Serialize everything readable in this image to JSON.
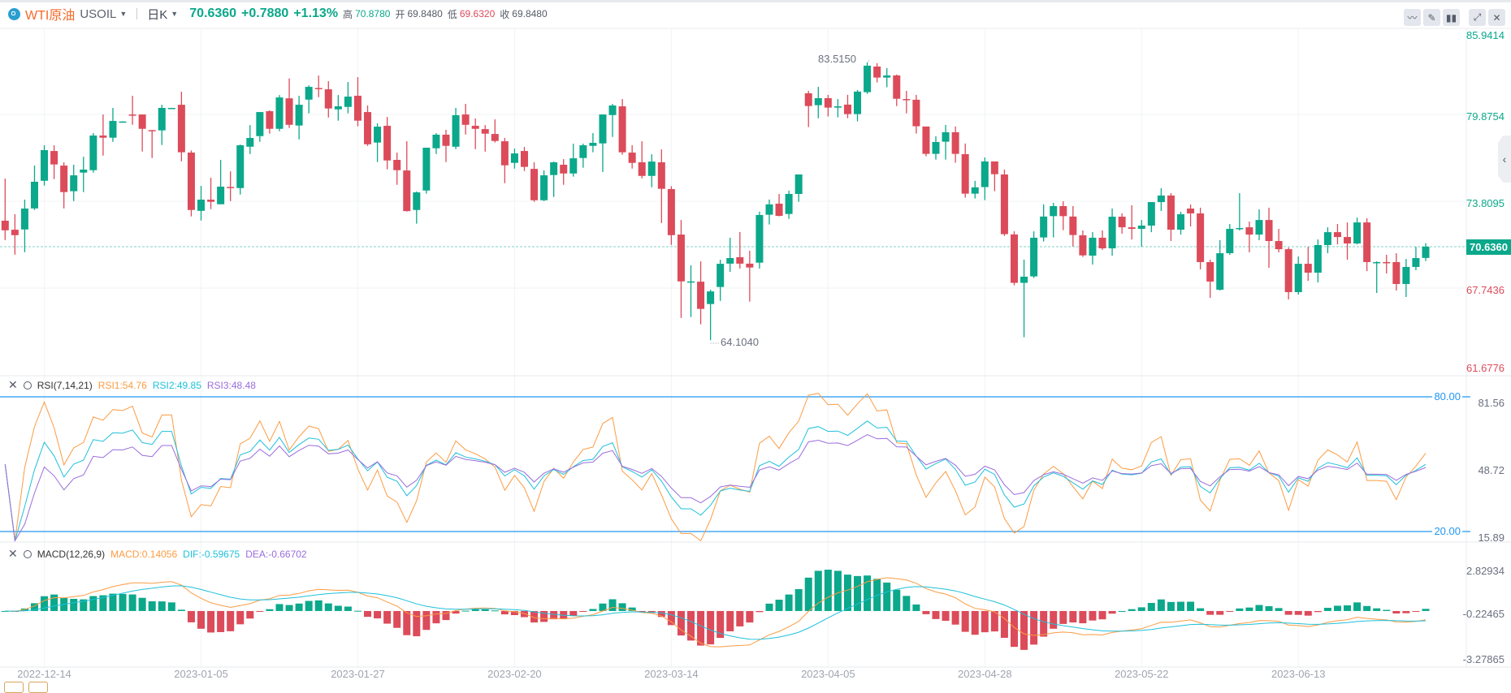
{
  "header": {
    "name": "WTI原油",
    "symbol": "USOIL",
    "period": "日K",
    "last": "70.6360",
    "change": "+0.7880",
    "change_pct": "+1.13%",
    "high_label": "高",
    "high": "70.8780",
    "open_label": "开",
    "open": "69.8480",
    "low_label": "低",
    "low": "69.6320",
    "close_label": "收",
    "close": "69.8480"
  },
  "toolbar": {
    "icons": [
      "indicator-icon",
      "draw-pencil-icon",
      "candlestick-type-icon",
      "expand-icon",
      "close-icon"
    ]
  },
  "colors": {
    "up": "#0ba88b",
    "down": "#dc4b5a",
    "rsi1": "#fb9c44",
    "rsi2": "#1fc0da",
    "rsi3": "#9a6ddc",
    "macd": "#fb9c44",
    "dif": "#1fc0da",
    "dea": "#9a6ddc",
    "band": "#2196f3"
  },
  "chart_data": [
    {
      "type": "candlestick",
      "price_axis": {
        "ticks": [
          "85.9414",
          "79.8754",
          "73.8095",
          "67.7436",
          "61.6776"
        ],
        "range": [
          61.6776,
          85.9414
        ]
      },
      "current_price": "70.6360",
      "annotations": {
        "max": "83.5150",
        "min": "64.1040"
      },
      "x_ticks": [
        {
          "label": "2022-12-14",
          "index": 4
        },
        {
          "label": "2023-01-05",
          "index": 20
        },
        {
          "label": "2023-01-27",
          "index": 36
        },
        {
          "label": "2023-02-20",
          "index": 52
        },
        {
          "label": "2023-03-14",
          "index": 68
        },
        {
          "label": "2023-04-05",
          "index": 84
        },
        {
          "label": "2023-04-28",
          "index": 100
        },
        {
          "label": "2023-05-22",
          "index": 116
        },
        {
          "label": "2023-06-13",
          "index": 132
        }
      ],
      "ohlc": [
        [
          72.45,
          75.39,
          71.1,
          71.78
        ],
        [
          71.82,
          72.9,
          70.08,
          71.44
        ],
        [
          71.84,
          73.92,
          70.25,
          73.3
        ],
        [
          73.31,
          76.3,
          73.2,
          75.17
        ],
        [
          75.24,
          77.72,
          74.9,
          77.38
        ],
        [
          77.32,
          77.72,
          75.36,
          76.38
        ],
        [
          76.3,
          76.53,
          73.31,
          74.45
        ],
        [
          74.51,
          76.36,
          73.82,
          75.62
        ],
        [
          75.81,
          76.92,
          74.45,
          76.02
        ],
        [
          75.98,
          78.57,
          75.81,
          78.4
        ],
        [
          78.4,
          79.87,
          77.0,
          78.25
        ],
        [
          78.25,
          80.33,
          77.96,
          79.42
        ],
        [
          79.34,
          79.4,
          79.32,
          79.38
        ],
        [
          79.87,
          81.18,
          79.15,
          79.83
        ],
        [
          79.87,
          79.87,
          77.28,
          78.87
        ],
        [
          78.78,
          78.78,
          76.83,
          78.72
        ],
        [
          78.76,
          80.55,
          77.74,
          80.33
        ],
        [
          80.31,
          80.33,
          80.31,
          80.33
        ],
        [
          80.55,
          81.46,
          76.6,
          77.23
        ],
        [
          77.21,
          77.36,
          72.75,
          73.2
        ],
        [
          73.14,
          74.88,
          72.46,
          73.92
        ],
        [
          73.92,
          75.45,
          73.26,
          73.77
        ],
        [
          73.6,
          76.7,
          73.6,
          74.83
        ],
        [
          74.81,
          75.9,
          73.82,
          74.73
        ],
        [
          74.73,
          77.77,
          74.28,
          77.72
        ],
        [
          77.62,
          79.13,
          77.11,
          78.23
        ],
        [
          78.36,
          80.04,
          77.96,
          80.04
        ],
        [
          80.1,
          80.16,
          78.53,
          78.87
        ],
        [
          78.87,
          81.23,
          78.7,
          81.06
        ],
        [
          81.0,
          82.39,
          78.93,
          79.15
        ],
        [
          79.1,
          81.18,
          78.13,
          80.55
        ],
        [
          80.91,
          81.91,
          79.95,
          81.8
        ],
        [
          81.72,
          82.59,
          81.08,
          81.65
        ],
        [
          81.63,
          82.2,
          79.66,
          80.29
        ],
        [
          80.23,
          81.23,
          79.44,
          80.44
        ],
        [
          80.4,
          82.14,
          79.95,
          81.12
        ],
        [
          81.18,
          82.48,
          79.04,
          79.44
        ],
        [
          80.04,
          80.5,
          77.68,
          77.79
        ],
        [
          77.91,
          79.25,
          76.55,
          79.02
        ],
        [
          79.08,
          79.7,
          76.04,
          76.66
        ],
        [
          76.7,
          77.21,
          74.96,
          75.98
        ],
        [
          75.96,
          78.0,
          73.09,
          73.12
        ],
        [
          73.2,
          74.49,
          72.24,
          74.43
        ],
        [
          74.56,
          77.55,
          74.34,
          77.55
        ],
        [
          77.51,
          78.57,
          77.11,
          78.46
        ],
        [
          78.46,
          78.8,
          76.55,
          77.68
        ],
        [
          77.62,
          80.33,
          77.45,
          79.82
        ],
        [
          79.87,
          80.61,
          78.47,
          79.15
        ],
        [
          79.08,
          79.59,
          77.45,
          78.87
        ],
        [
          78.85,
          79.13,
          77.28,
          78.53
        ],
        [
          78.51,
          79.53,
          77.91,
          78.02
        ],
        [
          78.0,
          78.23,
          75.07,
          76.32
        ],
        [
          76.49,
          77.49,
          76.09,
          77.15
        ],
        [
          77.32,
          77.6,
          75.92,
          76.21
        ],
        [
          76.07,
          76.53,
          73.77,
          73.88
        ],
        [
          73.88,
          75.96,
          73.82,
          75.62
        ],
        [
          75.64,
          76.58,
          74.11,
          76.53
        ],
        [
          76.36,
          76.75,
          74.96,
          75.75
        ],
        [
          75.75,
          77.83,
          75.53,
          76.81
        ],
        [
          76.83,
          77.83,
          76.15,
          77.72
        ],
        [
          77.68,
          78.57,
          77.23,
          77.89
        ],
        [
          77.85,
          79.87,
          75.86,
          79.87
        ],
        [
          79.83,
          80.61,
          78.3,
          80.5
        ],
        [
          80.44,
          80.95,
          77.06,
          77.23
        ],
        [
          77.21,
          77.72,
          76.09,
          76.49
        ],
        [
          76.53,
          78.0,
          75.41,
          75.58
        ],
        [
          75.58,
          77.09,
          74.79,
          76.58
        ],
        [
          76.53,
          77.43,
          72.29,
          74.68
        ],
        [
          74.66,
          74.86,
          70.76,
          71.44
        ],
        [
          71.48,
          72.5,
          65.66,
          68.21
        ],
        [
          68.16,
          69.33,
          65.72,
          68.21
        ],
        [
          68.19,
          69.61,
          65.21,
          66.29
        ],
        [
          66.63,
          67.63,
          64.1,
          67.51
        ],
        [
          67.82,
          69.72,
          66.85,
          69.44
        ],
        [
          69.45,
          71.26,
          68.88,
          69.84
        ],
        [
          69.9,
          71.66,
          69.11,
          69.45
        ],
        [
          69.45,
          70.35,
          66.8,
          69.18
        ],
        [
          69.52,
          73.08,
          69.11,
          72.85
        ],
        [
          72.87,
          73.93,
          72.19,
          73.59
        ],
        [
          73.64,
          74.32,
          72.75,
          72.79
        ],
        [
          72.92,
          74.55,
          72.58,
          74.32
        ],
        [
          74.32,
          75.68,
          73.77,
          75.68
        ],
        [
          81.35,
          81.52,
          78.99,
          80.46
        ],
        [
          80.52,
          81.8,
          79.61,
          81.01
        ],
        [
          81.01,
          81.24,
          79.73,
          80.35
        ],
        [
          80.35,
          80.95,
          79.67,
          80.44
        ],
        [
          80.56,
          81.24,
          79.61,
          79.9
        ],
        [
          79.9,
          81.58,
          79.39,
          81.47
        ],
        [
          81.43,
          83.52,
          81.31,
          83.28
        ],
        [
          83.22,
          83.45,
          82.11,
          82.45
        ],
        [
          82.45,
          83.11,
          81.77,
          82.6
        ],
        [
          82.6,
          82.66,
          80.46,
          80.97
        ],
        [
          80.95,
          81.52,
          79.95,
          80.92
        ],
        [
          80.9,
          81.24,
          78.54,
          79.05
        ],
        [
          79.03,
          79.03,
          76.95,
          77.12
        ],
        [
          77.12,
          78.35,
          76.72,
          77.95
        ],
        [
          77.97,
          79.14,
          76.72,
          78.63
        ],
        [
          78.63,
          79.03,
          76.5,
          77.12
        ],
        [
          77.1,
          77.84,
          74.06,
          74.34
        ],
        [
          74.34,
          75.23,
          74.0,
          74.78
        ],
        [
          74.8,
          76.87,
          73.89,
          76.59
        ],
        [
          76.59,
          76.59,
          74.51,
          75.7
        ],
        [
          75.68,
          76.02,
          71.39,
          71.51
        ],
        [
          71.49,
          71.71,
          67.94,
          68.11
        ],
        [
          68.11,
          69.73,
          64.31,
          68.54
        ],
        [
          68.56,
          71.71,
          68.45,
          71.26
        ],
        [
          71.28,
          73.59,
          71.0,
          72.74
        ],
        [
          72.77,
          73.7,
          71.28,
          73.47
        ],
        [
          73.47,
          73.81,
          71.79,
          72.77
        ],
        [
          72.74,
          73.47,
          70.66,
          71.45
        ],
        [
          71.43,
          71.77,
          69.92,
          70.03
        ],
        [
          70.01,
          71.65,
          69.39,
          71.26
        ],
        [
          71.26,
          71.77,
          70.41,
          70.52
        ],
        [
          70.52,
          73.3,
          70.01,
          72.73
        ],
        [
          72.73,
          72.96,
          71.54,
          71.99
        ],
        [
          71.99,
          73.53,
          71.14,
          71.88
        ],
        [
          71.88,
          72.5,
          70.63,
          72.11
        ],
        [
          72.11,
          73.75,
          71.65,
          73.75
        ],
        [
          73.75,
          74.72,
          73.13,
          74.21
        ],
        [
          74.21,
          74.38,
          71.03,
          71.82
        ],
        [
          71.82,
          73.07,
          71.48,
          72.9
        ],
        [
          73.3,
          73.58,
          72.05,
          72.96
        ],
        [
          72.96,
          73.36,
          69.05,
          69.56
        ],
        [
          69.56,
          69.73,
          67.06,
          68.2
        ],
        [
          67.63,
          71.09,
          67.57,
          70.18
        ],
        [
          70.18,
          72.22,
          70.07,
          71.88
        ],
        [
          71.88,
          74.38,
          71.77,
          71.94
        ],
        [
          71.99,
          72.39,
          70.24,
          71.48
        ],
        [
          71.48,
          73.24,
          71.09,
          72.5
        ],
        [
          72.5,
          73.36,
          69.16,
          71.03
        ],
        [
          71.03,
          71.88,
          70.24,
          70.46
        ],
        [
          70.46,
          70.58,
          66.95,
          67.46
        ],
        [
          67.46,
          69.95,
          67.29,
          69.44
        ],
        [
          69.44,
          70.63,
          68.25,
          68.82
        ],
        [
          68.82,
          71.14,
          68.14,
          70.75
        ],
        [
          70.75,
          71.99,
          70.18,
          71.65
        ],
        [
          71.65,
          72.22,
          70.8,
          71.31
        ],
        [
          71.31,
          72.33,
          69.73,
          70.86
        ],
        [
          70.86,
          72.67,
          70.8,
          72.33
        ],
        [
          72.33,
          72.62,
          68.93,
          69.56
        ],
        [
          69.5,
          69.61,
          67.4,
          69.56
        ],
        [
          69.56,
          70.07,
          68.76,
          69.5
        ],
        [
          69.56,
          70.18,
          67.57,
          68.03
        ],
        [
          68.03,
          69.78,
          67.12,
          69.22
        ],
        [
          69.22,
          70.63,
          68.99,
          69.84
        ],
        [
          69.848,
          70.878,
          69.632,
          70.636
        ]
      ]
    },
    {
      "type": "line",
      "indicator": "RSI(7,14,21)",
      "periods": [
        7,
        14,
        21
      ],
      "legend": [
        "RSI1:54.76",
        "RSI2:49.85",
        "RSI3:48.48"
      ],
      "axis_ticks": [
        "81.56",
        "48.72",
        "15.89"
      ],
      "range": [
        15.89,
        81.56
      ],
      "bands": [
        "80.00",
        "20.00"
      ]
    },
    {
      "type": "bar+line",
      "indicator": "MACD(12,26,9)",
      "params": [
        12,
        26,
        9
      ],
      "legend": [
        "MACD:0.14056",
        "DIF:-0.59675",
        "DEA:-0.66702"
      ],
      "axis_ticks": [
        "2.82934",
        "-0.22465",
        "-3.27865"
      ],
      "range": [
        -3.27865,
        2.82934
      ]
    }
  ]
}
